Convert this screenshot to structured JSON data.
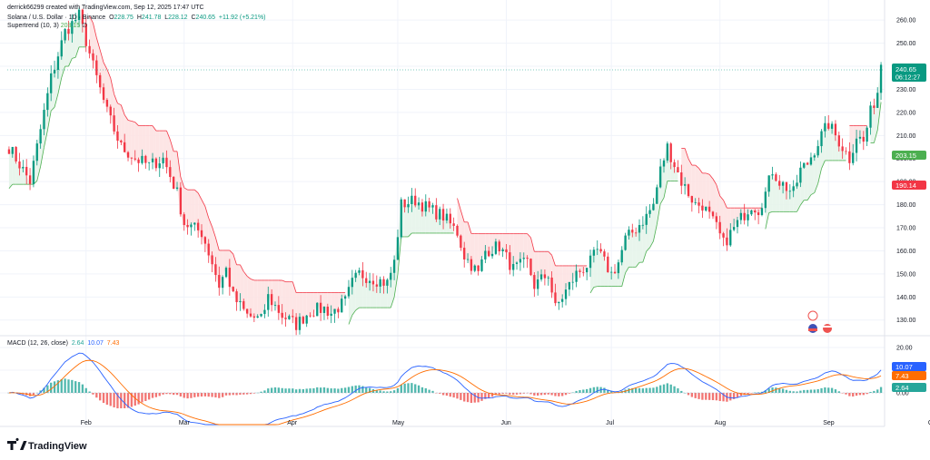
{
  "header": {
    "credit": "derrick66299 created with TradingView.com, Sep 12, 2025 17:47 UTC",
    "symbol": "Solana / U.S. Dollar · 1D · Binance",
    "o_label": "O",
    "o_value": "228.75",
    "h_label": "H",
    "h_value": "241.78",
    "l_label": "L",
    "l_value": "228.12",
    "c_label": "C",
    "c_value": "240.65",
    "change": "+11.92 (+5.21%)",
    "supertrend_label": "Supertrend (10, 3)",
    "supertrend_value": "203.15"
  },
  "macd_header": {
    "label": "MACD (12, 26, close)",
    "hist": "2.64",
    "macd": "10.07",
    "signal": "7.43"
  },
  "price_tag": {
    "value": "240.65",
    "countdown": "06:12:27"
  },
  "supertrend_tag": "203.15",
  "red_tag": "190.14",
  "macd_tags": {
    "macd": "10.07",
    "signal": "7.43",
    "hist": "2.64"
  },
  "brand": "TradingView",
  "colors": {
    "up": "#089981",
    "down": "#f23645",
    "supertrend_up_fill": "#e6f4ea",
    "supertrend_dn_fill": "#fde2e2",
    "supertrend_up_line": "#4caf50",
    "supertrend_dn_line": "#f23645",
    "macd_line": "#2962ff",
    "signal_line": "#ff6d00",
    "hist_up": "#26a69a",
    "hist_dn": "#ef5350"
  },
  "chart_data": {
    "type": "candlestick",
    "title": "Solana / U.S. Dollar · 1D · Binance",
    "price_axis_ticks": [
      "260.00",
      "250.00",
      "240.00",
      "230.00",
      "220.00",
      "210.00",
      "200.00",
      "190.00",
      "180.00",
      "170.00",
      "160.00",
      "150.00",
      "140.00",
      "130.00"
    ],
    "macd_axis_ticks": [
      "20.00",
      "10.00",
      "0.00"
    ],
    "time_axis_labels": [
      "Feb",
      "Mar",
      "Apr",
      "May",
      "Jun",
      "Jul",
      "Aug",
      "Sep",
      "Oct"
    ],
    "ylim": [
      124,
      264
    ],
    "macd_ylim": [
      -14,
      22
    ],
    "anchors": [
      [
        0,
        205
      ],
      [
        6,
        190
      ],
      [
        12,
        235
      ],
      [
        16,
        255
      ],
      [
        20,
        262
      ],
      [
        24,
        240
      ],
      [
        28,
        220
      ],
      [
        32,
        205
      ],
      [
        36,
        200
      ],
      [
        40,
        197
      ],
      [
        44,
        200
      ],
      [
        48,
        185
      ],
      [
        50,
        172
      ],
      [
        55,
        168
      ],
      [
        58,
        155
      ],
      [
        60,
        145
      ],
      [
        62,
        152
      ],
      [
        64,
        140
      ],
      [
        68,
        132
      ],
      [
        72,
        130
      ],
      [
        74,
        140
      ],
      [
        78,
        132
      ],
      [
        82,
        128
      ],
      [
        86,
        134
      ],
      [
        90,
        135
      ],
      [
        92,
        133
      ],
      [
        96,
        138
      ],
      [
        98,
        146
      ],
      [
        100,
        150
      ],
      [
        104,
        148
      ],
      [
        108,
        146
      ],
      [
        110,
        155
      ],
      [
        112,
        180
      ],
      [
        116,
        182
      ],
      [
        120,
        178
      ],
      [
        124,
        175
      ],
      [
        128,
        168
      ],
      [
        130,
        158
      ],
      [
        134,
        150
      ],
      [
        136,
        160
      ],
      [
        140,
        162
      ],
      [
        144,
        152
      ],
      [
        148,
        155
      ],
      [
        150,
        145
      ],
      [
        154,
        150
      ],
      [
        156,
        135
      ],
      [
        158,
        140
      ],
      [
        162,
        150
      ],
      [
        166,
        155
      ],
      [
        168,
        160
      ],
      [
        172,
        150
      ],
      [
        174,
        155
      ],
      [
        176,
        165
      ],
      [
        178,
        168
      ],
      [
        182,
        175
      ],
      [
        184,
        180
      ],
      [
        186,
        195
      ],
      [
        188,
        205
      ],
      [
        192,
        190
      ],
      [
        196,
        180
      ],
      [
        198,
        180
      ],
      [
        202,
        170
      ],
      [
        204,
        163
      ],
      [
        208,
        172
      ],
      [
        212,
        180
      ],
      [
        214,
        178
      ],
      [
        216,
        185
      ],
      [
        218,
        195
      ],
      [
        220,
        190
      ],
      [
        224,
        185
      ],
      [
        226,
        195
      ],
      [
        228,
        198
      ],
      [
        232,
        210
      ],
      [
        234,
        215
      ],
      [
        238,
        205
      ],
      [
        240,
        200
      ],
      [
        242,
        210
      ],
      [
        244,
        207
      ],
      [
        246,
        220
      ],
      [
        248,
        229
      ],
      [
        249,
        240.65
      ]
    ],
    "total_days": 250,
    "last_close": 240.65,
    "supertrend_last": 203.15,
    "macd_last": {
      "macd": 10.07,
      "signal": 7.43,
      "hist": 2.64
    }
  }
}
